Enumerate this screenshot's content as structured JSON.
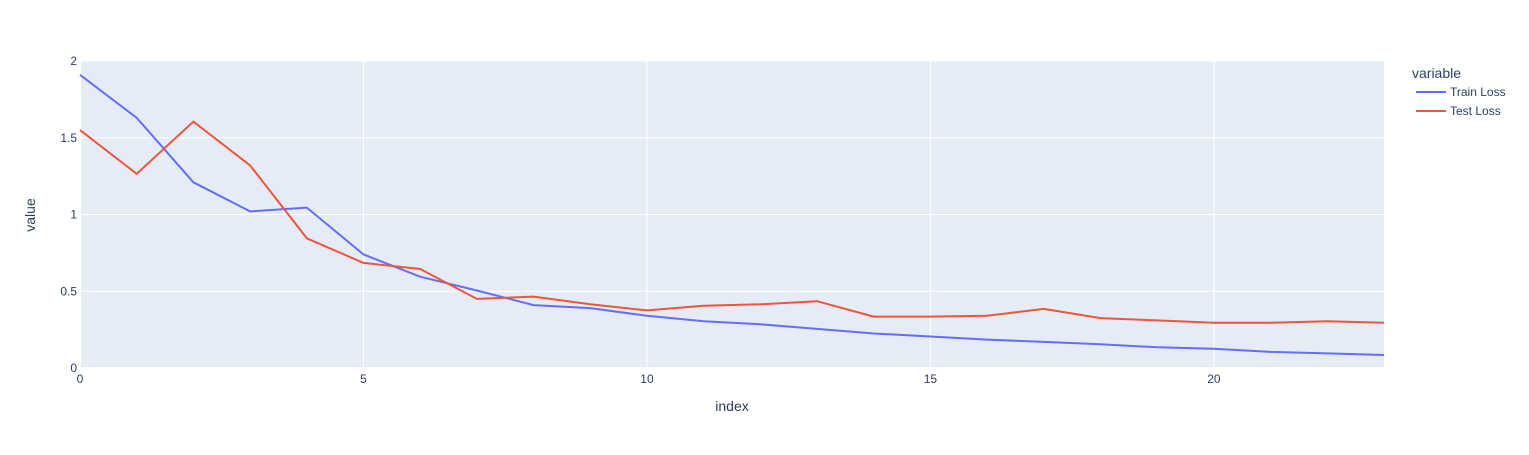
{
  "chart_data": {
    "type": "line",
    "xlabel": "index",
    "ylabel": "value",
    "legend": {
      "title": "variable",
      "placement": "top-right, outside plot"
    },
    "xlim": [
      0,
      23
    ],
    "ylim": [
      0,
      2
    ],
    "x_ticks": [
      0,
      5,
      10,
      15,
      20
    ],
    "y_ticks": [
      0,
      0.5,
      1,
      1.5,
      2
    ],
    "y_tick_labels": [
      "0",
      "0.5",
      "1",
      "1.5",
      "2"
    ],
    "grid": true,
    "plot_background": "#E5ECF6",
    "x": [
      0,
      1,
      2,
      3,
      4,
      5,
      6,
      7,
      8,
      9,
      10,
      11,
      12,
      13,
      14,
      15,
      16,
      17,
      18,
      19,
      20,
      21,
      22,
      23
    ],
    "series": [
      {
        "name": "Train Loss",
        "color": "#636EFA",
        "values": [
          1.91,
          1.63,
          1.21,
          1.02,
          1.045,
          0.74,
          0.595,
          0.505,
          0.41,
          0.39,
          0.34,
          0.305,
          0.285,
          0.255,
          0.225,
          0.205,
          0.185,
          0.17,
          0.155,
          0.135,
          0.125,
          0.105,
          0.095,
          0.085
        ]
      },
      {
        "name": "Test Loss",
        "color": "#EF553B",
        "values": [
          1.55,
          1.265,
          1.605,
          1.32,
          0.845,
          0.685,
          0.645,
          0.45,
          0.465,
          0.415,
          0.375,
          0.405,
          0.415,
          0.435,
          0.335,
          0.335,
          0.34,
          0.385,
          0.325,
          0.31,
          0.295,
          0.295,
          0.305,
          0.295
        ]
      }
    ]
  }
}
